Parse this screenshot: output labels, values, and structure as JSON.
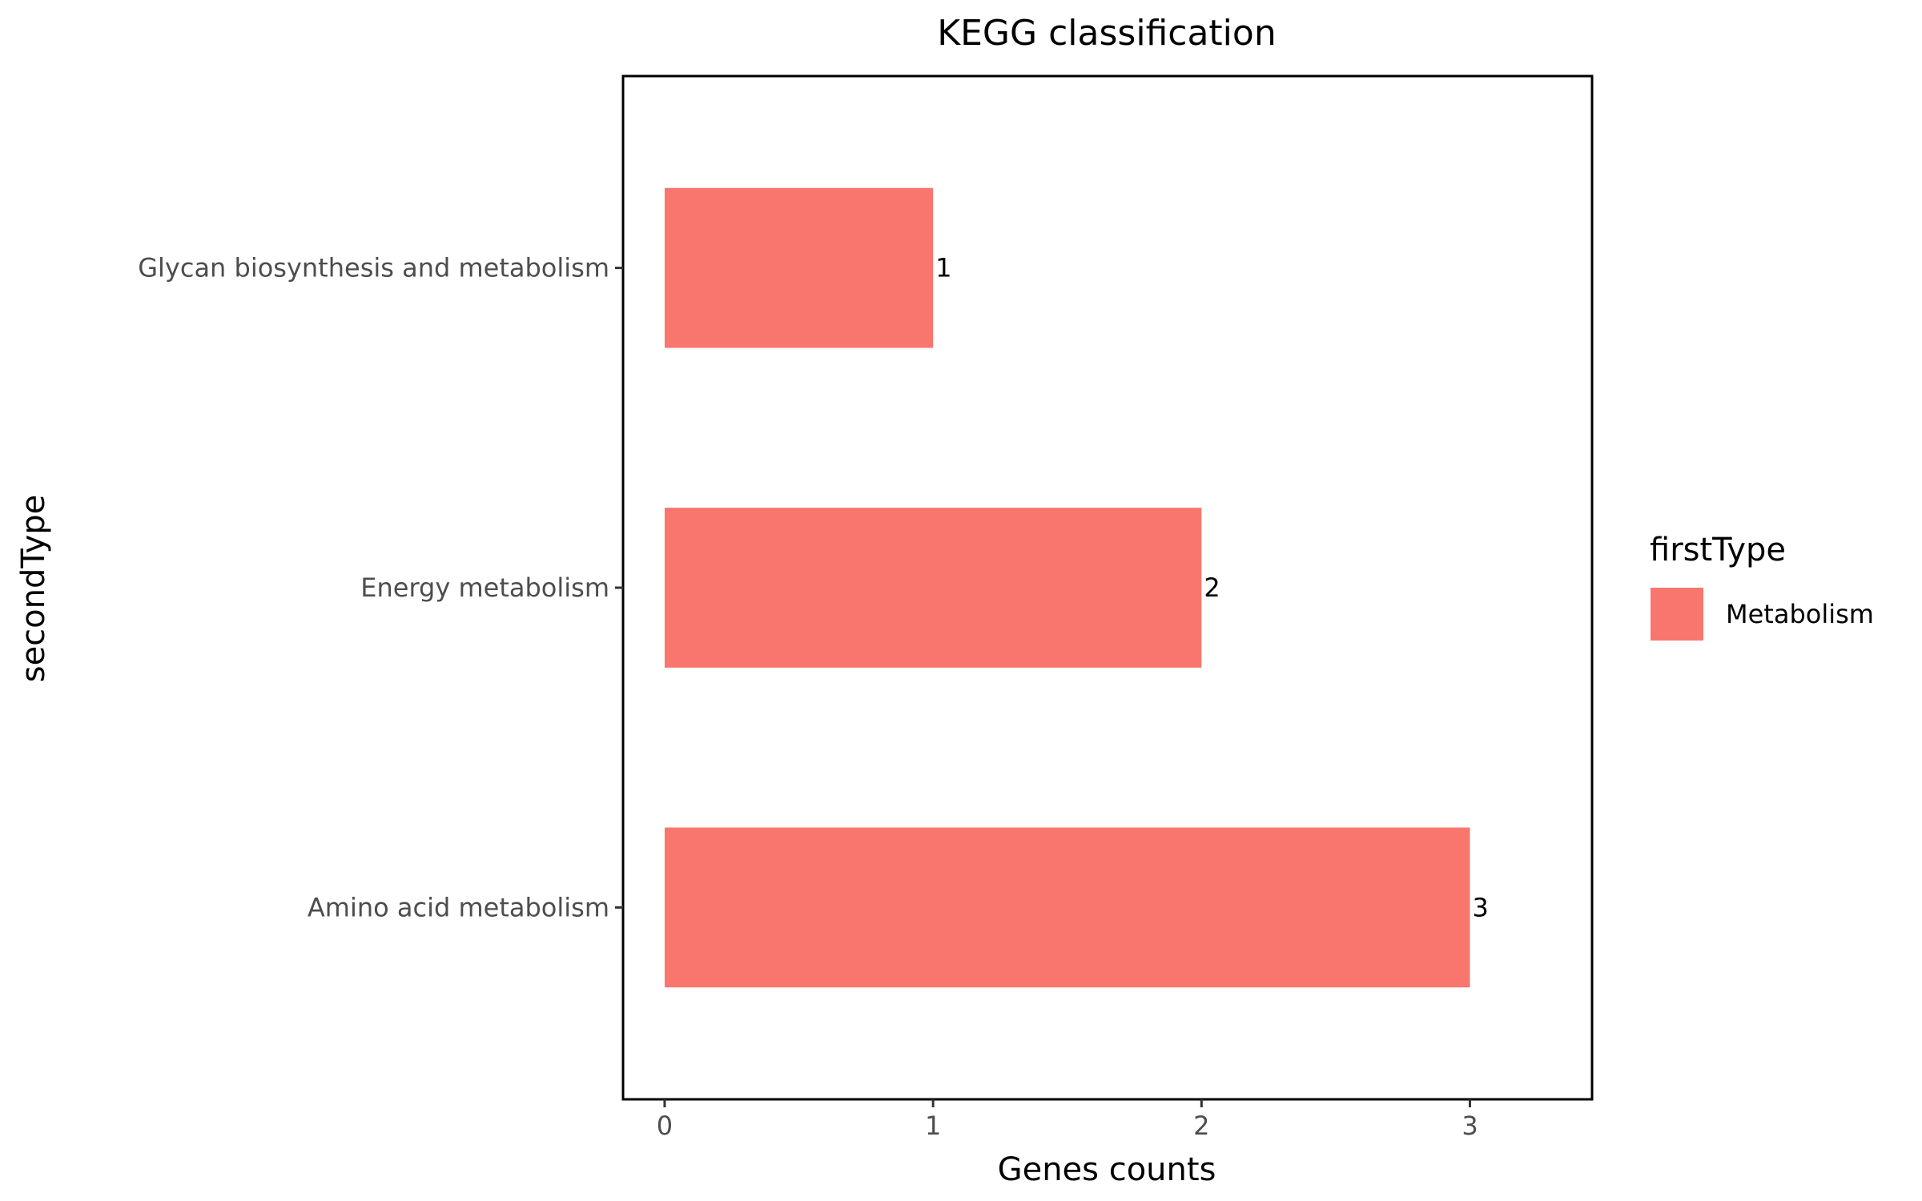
{
  "chart_data": {
    "type": "bar",
    "orientation": "horizontal",
    "title": "KEGG classification",
    "xlabel": "Genes counts",
    "ylabel": "secondType",
    "categories": [
      "Glycan biosynthesis and metabolism",
      "Energy metabolism",
      "Amino acid metabolism"
    ],
    "series": [
      {
        "name": "Metabolism",
        "values": [
          1,
          2,
          3
        ],
        "color": "#F8766D"
      }
    ],
    "data_labels": [
      "1",
      "2",
      "3"
    ],
    "xlim": [
      -0.155,
      3.455
    ],
    "x_ticks": [
      0,
      1,
      2,
      3
    ],
    "x_tick_labels": [
      "0",
      "1",
      "2",
      "3"
    ],
    "grid": false,
    "legend": {
      "title": "firstType",
      "position": "right",
      "entries": [
        {
          "label": "Metabolism",
          "color": "#F8766D"
        }
      ]
    }
  }
}
